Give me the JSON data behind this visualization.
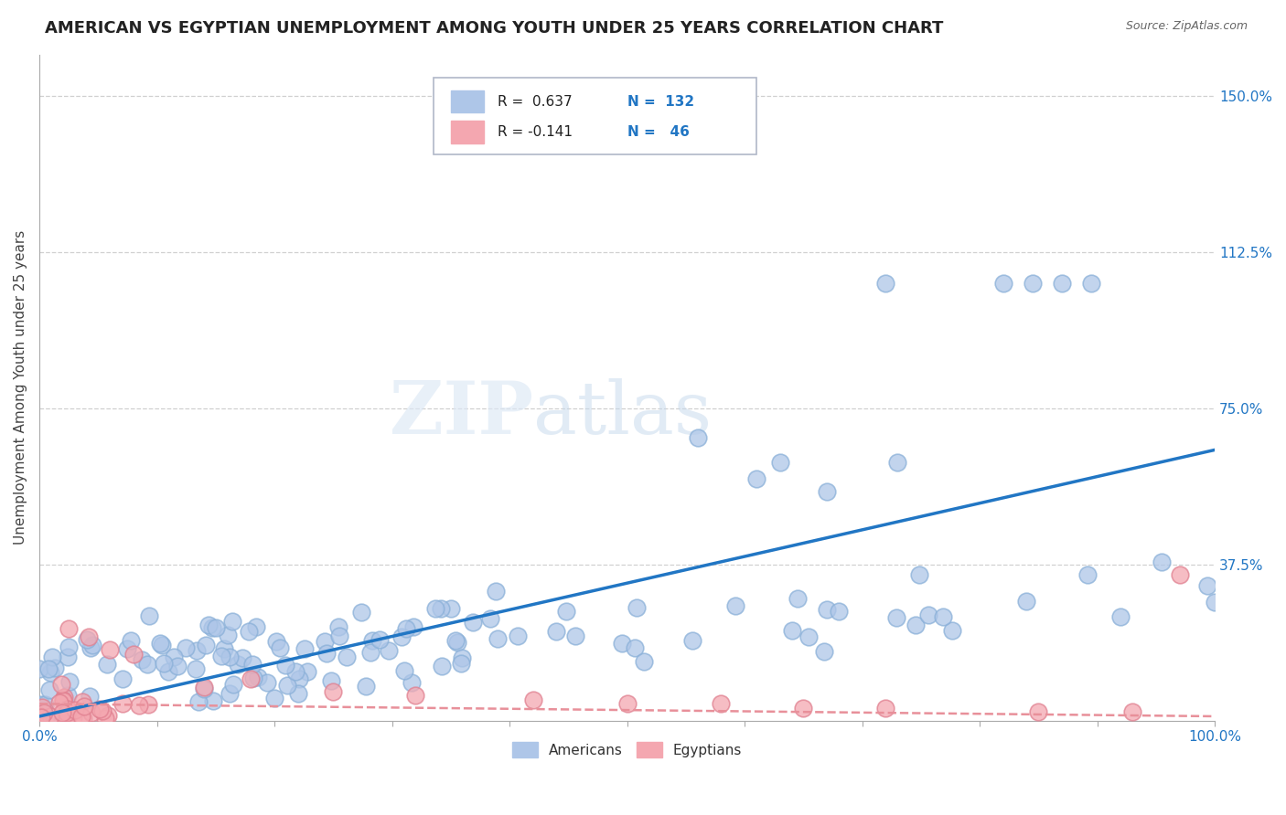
{
  "title": "AMERICAN VS EGYPTIAN UNEMPLOYMENT AMONG YOUTH UNDER 25 YEARS CORRELATION CHART",
  "source": "Source: ZipAtlas.com",
  "ylabel": "Unemployment Among Youth under 25 years",
  "xlim": [
    0.0,
    1.0
  ],
  "ylim": [
    0.0,
    1.6
  ],
  "x_ticks": [
    0.0,
    0.1,
    0.2,
    0.3,
    0.4,
    0.5,
    0.6,
    0.7,
    0.8,
    0.9,
    1.0
  ],
  "x_tick_labels": [
    "0.0%",
    "",
    "",
    "",
    "",
    "",
    "",
    "",
    "",
    "",
    "100.0%"
  ],
  "y_ticks": [
    0.0,
    0.375,
    0.75,
    1.125,
    1.5
  ],
  "y_tick_labels": [
    "",
    "37.5%",
    "75.0%",
    "112.5%",
    "150.0%"
  ],
  "american_color": "#aec6e8",
  "egyptian_color": "#f4a7b0",
  "american_line_color": "#2176c4",
  "egyptian_line_color": "#e8909a",
  "legend_label_american": "Americans",
  "legend_label_egyptian": "Egyptians",
  "watermark_zip": "ZIP",
  "watermark_atlas": "atlas",
  "title_fontsize": 13,
  "axis_label_fontsize": 11,
  "tick_fontsize": 11,
  "american_R": 0.637,
  "american_N": 132,
  "egyptian_R": -0.141,
  "egyptian_N": 46,
  "background_color": "#ffffff",
  "grid_color": "#cccccc",
  "american_line_start_y": 0.01,
  "american_line_end_y": 0.65,
  "egyptian_line_start_y": 0.04,
  "egyptian_line_end_y": 0.01
}
